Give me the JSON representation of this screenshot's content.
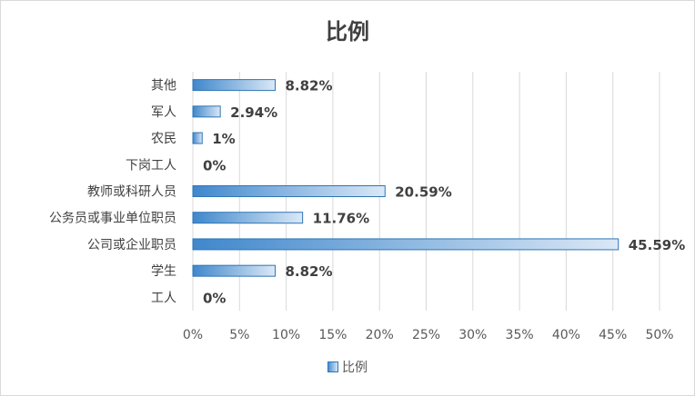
{
  "chart_data": {
    "type": "bar",
    "orientation": "horizontal",
    "title": "比例",
    "categories": [
      "其他",
      "军人",
      "农民",
      "下岗工人",
      "教师或科研人员",
      "公务员或事业单位职员",
      "公司或企业职员",
      "学生",
      "工人"
    ],
    "series": [
      {
        "name": "比例",
        "values": [
          8.82,
          2.94,
          1,
          0,
          20.59,
          11.76,
          45.59,
          8.82,
          0
        ],
        "labels": [
          "8.82%",
          "2.94%",
          "1%",
          "0%",
          "20.59%",
          "11.76%",
          "45.59%",
          "8.82%",
          "0%"
        ]
      }
    ],
    "xlim": [
      0,
      50
    ],
    "xticks": [
      0,
      5,
      10,
      15,
      20,
      25,
      30,
      35,
      40,
      45,
      50
    ],
    "xtick_labels": [
      "0%",
      "5%",
      "10%",
      "15%",
      "20%",
      "25%",
      "30%",
      "35%",
      "40%",
      "45%",
      "50%"
    ],
    "grid": true,
    "legend_position": "bottom",
    "colors": {
      "bar_dark": "#2e75b6",
      "bar_mid": "#5b9bd5",
      "bar_light": "#dbe8f6",
      "grid": "#d9d9d9"
    }
  }
}
